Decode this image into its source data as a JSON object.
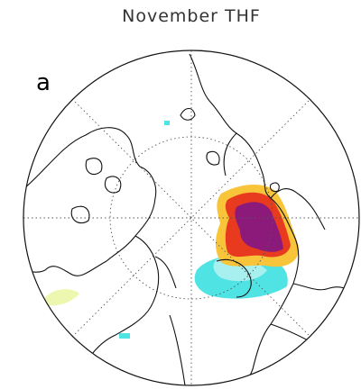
{
  "title": "November THF",
  "panel_label": "a"
}
